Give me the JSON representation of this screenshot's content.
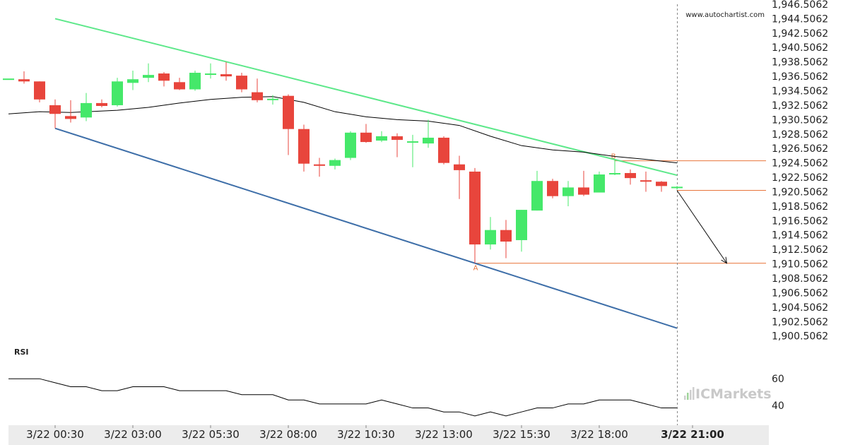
{
  "watermark": "www.autochartist.com",
  "logo": {
    "prefix": "IC",
    "suffix": "Markets"
  },
  "chart_data": {
    "type": "candlestick",
    "title": "",
    "ylim": [
      1899.5,
      1946.5
    ],
    "y_ticks": [
      "1,946.5062",
      "1,944.5062",
      "1,942.5062",
      "1,940.5062",
      "1,938.5062",
      "1,936.5062",
      "1,934.5062",
      "1,932.5062",
      "1,930.5062",
      "1,928.5062",
      "1,926.5062",
      "1,924.5062",
      "1,922.5062",
      "1,920.5062",
      "1,918.5062",
      "1,916.5062",
      "1,914.5062",
      "1,912.5062",
      "1,910.5062",
      "1,908.5062",
      "1,906.5062",
      "1,904.5062",
      "1,902.5062",
      "1,900.5062"
    ],
    "x_ticks": [
      {
        "label": "3/22 00:30",
        "t": 0
      },
      {
        "label": "3/22 03:00",
        "t": 2.5
      },
      {
        "label": "3/22 05:30",
        "t": 5
      },
      {
        "label": "3/22 08:00",
        "t": 7.5
      },
      {
        "label": "3/22 10:30",
        "t": 10
      },
      {
        "label": "3/22 13:00",
        "t": 12.5
      },
      {
        "label": "3/22 15:30",
        "t": 15
      },
      {
        "label": "3/22 18:00",
        "t": 17.5
      },
      {
        "label": "3/22 21:00",
        "t": 20.5
      }
    ],
    "candles": [
      [
        -1.5,
        1936.2,
        1936.2,
        1936.2,
        1936.2
      ],
      [
        -1.0,
        1936.1,
        1937.2,
        1935.5,
        1935.8
      ],
      [
        -0.5,
        1935.8,
        1935.8,
        1932.9,
        1933.3
      ],
      [
        0.0,
        1932.5,
        1933.3,
        1929.3,
        1931.3
      ],
      [
        0.5,
        1931.0,
        1933.2,
        1930.1,
        1930.6
      ],
      [
        1.0,
        1930.8,
        1934.2,
        1930.3,
        1932.8
      ],
      [
        1.5,
        1932.8,
        1933.3,
        1932.2,
        1932.4
      ],
      [
        2.0,
        1932.5,
        1936.3,
        1932.3,
        1935.8
      ],
      [
        2.5,
        1935.6,
        1937.3,
        1934.6,
        1936.1
      ],
      [
        3.0,
        1936.3,
        1938.3,
        1935.7,
        1936.7
      ],
      [
        3.5,
        1936.9,
        1937.1,
        1935.1,
        1935.9
      ],
      [
        4.0,
        1935.7,
        1936.3,
        1934.6,
        1934.7
      ],
      [
        4.5,
        1934.7,
        1937.3,
        1934.5,
        1937.0
      ],
      [
        5.0,
        1936.9,
        1938.3,
        1936.2,
        1936.9
      ],
      [
        5.5,
        1936.8,
        1938.5,
        1935.9,
        1936.5
      ],
      [
        6.0,
        1936.6,
        1937.0,
        1934.3,
        1934.7
      ],
      [
        6.5,
        1934.3,
        1936.2,
        1932.9,
        1933.2
      ],
      [
        7.0,
        1933.3,
        1933.9,
        1932.6,
        1933.4
      ],
      [
        7.5,
        1933.8,
        1934.0,
        1925.6,
        1929.2
      ],
      [
        8.0,
        1929.2,
        1929.8,
        1923.3,
        1924.4
      ],
      [
        8.5,
        1924.3,
        1925.2,
        1922.6,
        1924.1
      ],
      [
        9.0,
        1924.1,
        1925.1,
        1923.6,
        1924.9
      ],
      [
        9.5,
        1925.2,
        1928.9,
        1924.9,
        1928.7
      ],
      [
        10.0,
        1928.7,
        1929.9,
        1927.3,
        1927.4
      ],
      [
        10.5,
        1927.6,
        1928.9,
        1927.4,
        1928.2
      ],
      [
        11.0,
        1928.2,
        1928.6,
        1925.3,
        1927.7
      ],
      [
        11.5,
        1927.5,
        1928.4,
        1923.9,
        1927.5
      ],
      [
        12.0,
        1927.2,
        1930.5,
        1926.6,
        1928.0
      ],
      [
        12.5,
        1928.0,
        1928.2,
        1924.3,
        1924.5
      ],
      [
        13.0,
        1924.3,
        1925.5,
        1919.5,
        1923.5
      ],
      [
        13.5,
        1923.3,
        1923.8,
        1910.6,
        1913.2
      ],
      [
        14.0,
        1913.2,
        1917.0,
        1912.5,
        1915.2
      ],
      [
        14.5,
        1915.2,
        1916.6,
        1911.3,
        1913.6
      ],
      [
        15.0,
        1913.8,
        1918.0,
        1912.2,
        1918.0
      ],
      [
        15.5,
        1917.9,
        1923.4,
        1917.9,
        1922.0
      ],
      [
        16.0,
        1922.0,
        1922.3,
        1919.6,
        1919.9
      ],
      [
        16.5,
        1919.9,
        1922.0,
        1918.5,
        1921.1
      ],
      [
        17.0,
        1921.1,
        1923.4,
        1919.9,
        1920.1
      ],
      [
        17.5,
        1920.4,
        1923.3,
        1920.4,
        1922.9
      ],
      [
        18.0,
        1923.0,
        1925.0,
        1922.8,
        1923.1
      ],
      [
        18.5,
        1923.1,
        1923.6,
        1921.5,
        1922.4
      ],
      [
        19.0,
        1922.1,
        1923.3,
        1920.5,
        1921.9
      ],
      [
        19.5,
        1921.9,
        1922.0,
        1920.5,
        1921.3
      ],
      [
        20.0,
        1921.0,
        1921.3,
        1920.8,
        1921.2
      ]
    ],
    "moving_average": [
      [
        -1.5,
        1931.3
      ],
      [
        -0.5,
        1931.6
      ],
      [
        0.5,
        1931.5
      ],
      [
        2.0,
        1931.8
      ],
      [
        3.0,
        1932.2
      ],
      [
        4.0,
        1932.8
      ],
      [
        5.0,
        1933.3
      ],
      [
        6.0,
        1933.6
      ],
      [
        7.0,
        1933.7
      ],
      [
        8.0,
        1932.9
      ],
      [
        9.0,
        1931.6
      ],
      [
        10.0,
        1930.9
      ],
      [
        11.0,
        1930.5
      ],
      [
        12.0,
        1930.3
      ],
      [
        13.0,
        1929.7
      ],
      [
        14.0,
        1928.2
      ],
      [
        15.0,
        1926.9
      ],
      [
        16.0,
        1926.3
      ],
      [
        17.0,
        1926.0
      ],
      [
        18.0,
        1925.4
      ],
      [
        19.0,
        1925.0
      ],
      [
        20.0,
        1924.5
      ]
    ],
    "resistance_line": [
      [
        0.0,
        1944.5
      ],
      [
        20.0,
        1922.8
      ]
    ],
    "support_line": [
      [
        0.0,
        1929.3
      ],
      [
        20.0,
        1901.6
      ]
    ],
    "horizontal_levels": [
      {
        "label": "B",
        "value": 1924.8,
        "t": 18.0
      },
      {
        "label": "A",
        "value": 1910.6,
        "t": 13.5
      },
      {
        "label": "",
        "value": 1920.7,
        "t": 20.0
      }
    ],
    "forecast_arrow": [
      [
        20.0,
        1920.7
      ],
      [
        21.6,
        1910.6
      ]
    ],
    "current_time": 20.0,
    "rsi": {
      "label": "RSI",
      "ticks": [
        "60",
        "40"
      ],
      "ylim": [
        25,
        75
      ],
      "values": [
        [
          -1.5,
          60
        ],
        [
          -0.5,
          60
        ],
        [
          0.0,
          57
        ],
        [
          0.5,
          54
        ],
        [
          1.0,
          54
        ],
        [
          1.5,
          51
        ],
        [
          2.0,
          51
        ],
        [
          2.5,
          54
        ],
        [
          3.0,
          54
        ],
        [
          3.5,
          54
        ],
        [
          4.0,
          51
        ],
        [
          4.5,
          51
        ],
        [
          5.0,
          51
        ],
        [
          5.5,
          51
        ],
        [
          6.0,
          48
        ],
        [
          6.5,
          48
        ],
        [
          7.0,
          48
        ],
        [
          7.5,
          44
        ],
        [
          8.0,
          44
        ],
        [
          8.5,
          41
        ],
        [
          9.0,
          41
        ],
        [
          9.5,
          41
        ],
        [
          10.0,
          41
        ],
        [
          10.5,
          44
        ],
        [
          11.0,
          41
        ],
        [
          11.5,
          38
        ],
        [
          12.0,
          38
        ],
        [
          12.5,
          35
        ],
        [
          13.0,
          35
        ],
        [
          13.5,
          32
        ],
        [
          14.0,
          35
        ],
        [
          14.5,
          32
        ],
        [
          15.0,
          35
        ],
        [
          15.5,
          38
        ],
        [
          16.0,
          38
        ],
        [
          16.5,
          41
        ],
        [
          17.0,
          41
        ],
        [
          17.5,
          44
        ],
        [
          18.0,
          44
        ],
        [
          18.5,
          44
        ],
        [
          19.0,
          41
        ],
        [
          19.5,
          38
        ],
        [
          20.0,
          38
        ]
      ]
    }
  }
}
